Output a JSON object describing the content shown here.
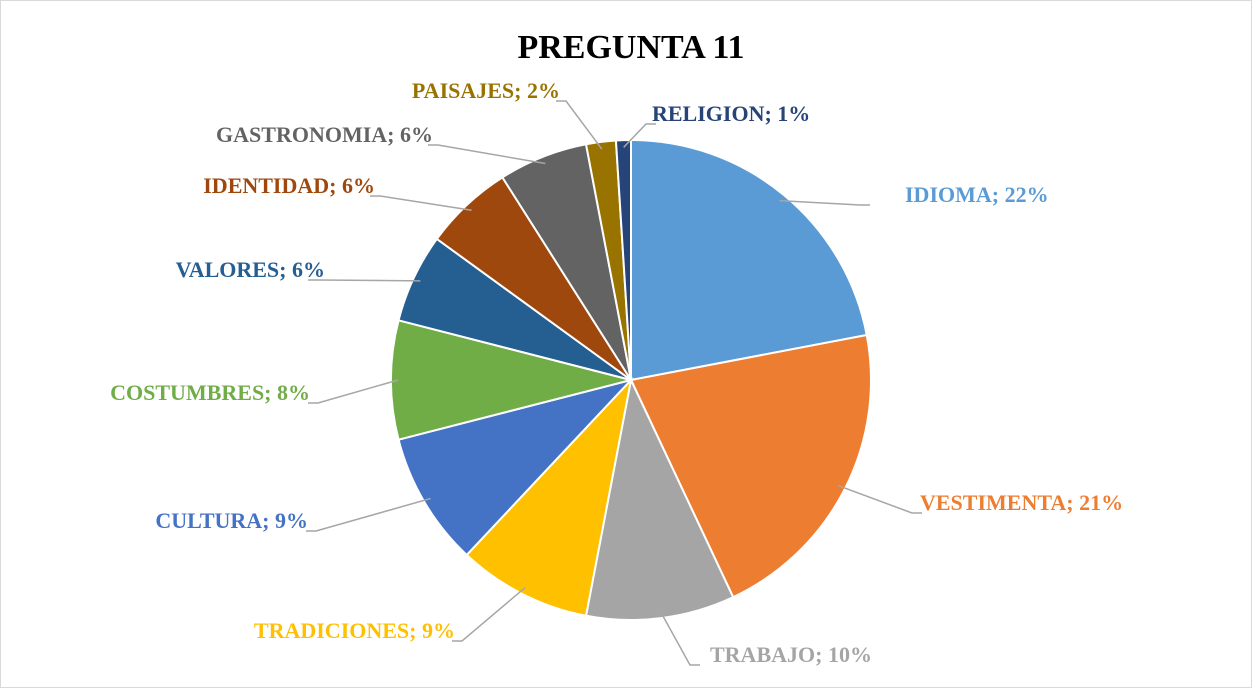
{
  "chart_data": {
    "type": "pie",
    "title": "PREGUNTA 11",
    "categories": [
      "IDIOMA",
      "VESTIMENTA",
      "TRABAJO",
      "TRADICIONES",
      "CULTURA",
      "COSTUMBRES",
      "VALORES",
      "IDENTIDAD",
      "GASTRONOMIA",
      "PAISAJES",
      "RELIGION"
    ],
    "values": [
      22,
      21,
      10,
      9,
      9,
      8,
      6,
      6,
      6,
      2,
      1
    ],
    "value_labels": [
      "IDIOMA; 22%",
      "VESTIMENTA; 21%",
      "TRABAJO; 10%",
      "TRADICIONES; 9%",
      "CULTURA; 9%",
      "COSTUMBRES; 8%",
      "VALORES; 6%",
      "IDENTIDAD; 6%",
      "GASTRONOMIA; 6%",
      "PAISAJES; 2%",
      "RELIGION; 1%"
    ],
    "colors": [
      "#5b9bd5",
      "#ed7d31",
      "#a5a5a5",
      "#ffc000",
      "#4472c4",
      "#70ad47",
      "#255e91",
      "#9e480e",
      "#636363",
      "#997300",
      "#264478"
    ]
  }
}
